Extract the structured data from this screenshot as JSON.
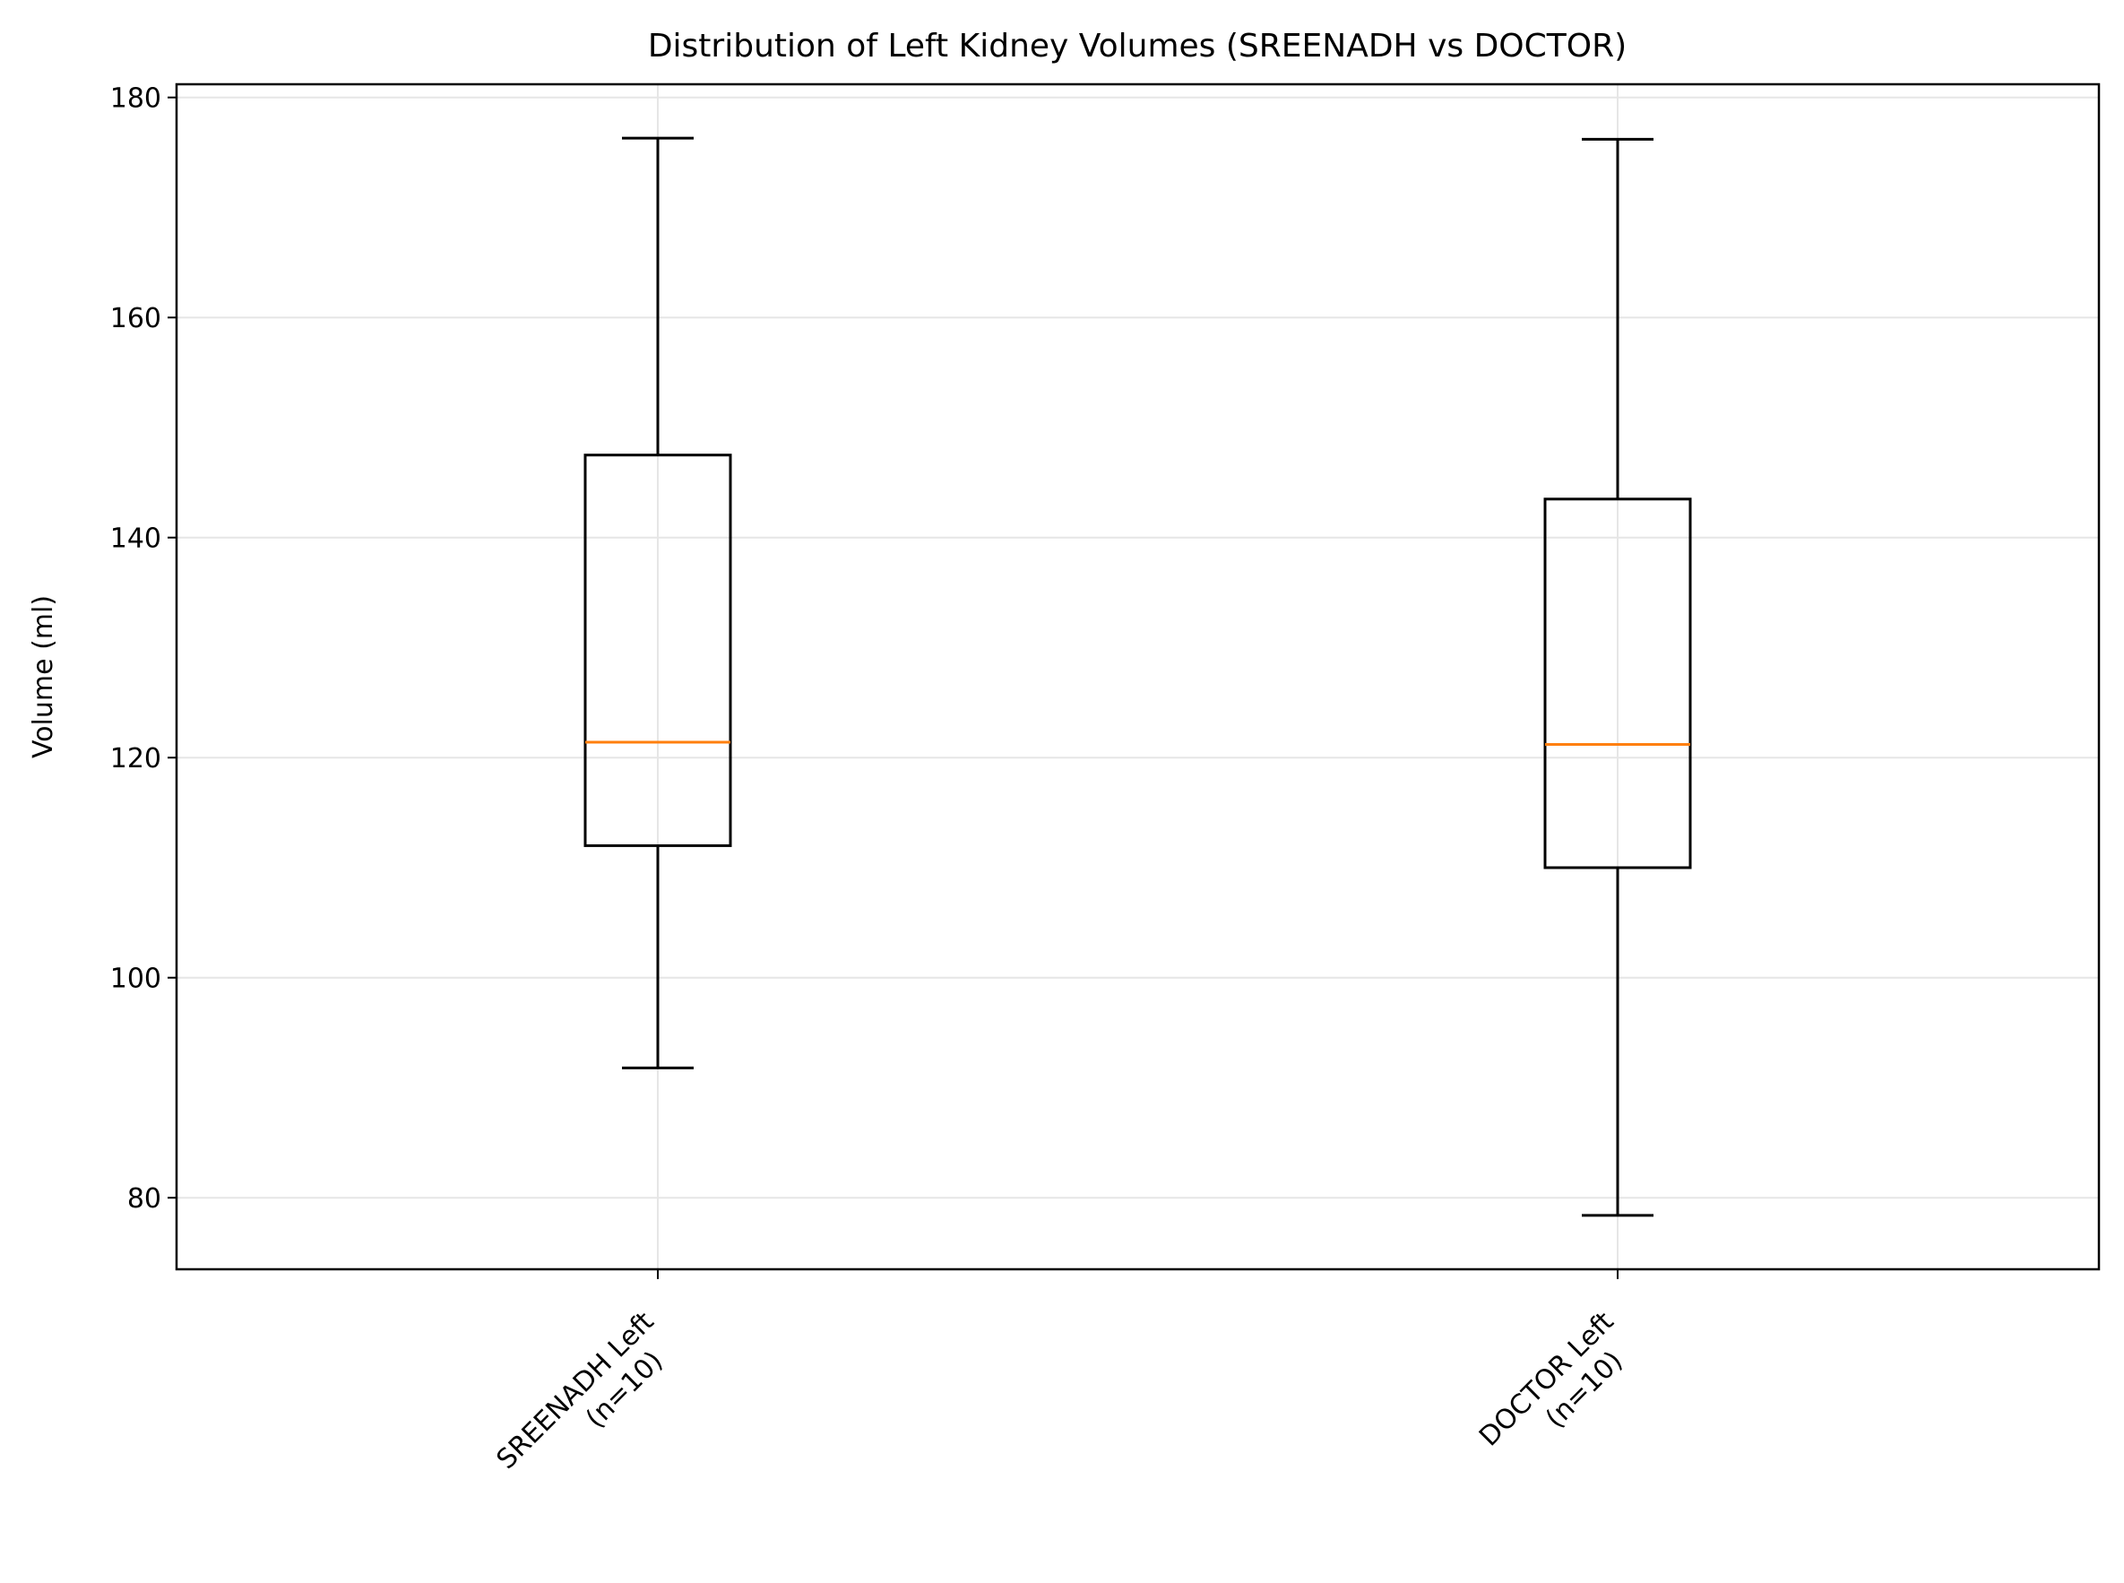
{
  "chart_data": {
    "type": "boxplot",
    "title": "Distribution of Left Kidney Volumes (SREENADH vs DOCTOR)",
    "xlabel": "",
    "ylabel": "Volume (ml)",
    "ylim": [
      73.5,
      181.2
    ],
    "yticks": [
      80,
      100,
      120,
      140,
      160,
      180
    ],
    "grid": true,
    "colors": {
      "box": "#000000",
      "median": "#ff7f0e",
      "grid": "#e6e6e6"
    },
    "categories": [
      {
        "line1": "SREENADH Left",
        "line2": "(n=10)"
      },
      {
        "line1": "DOCTOR Left",
        "line2": "(n=10)"
      }
    ],
    "boxes": [
      {
        "whisker_low": 91.8,
        "q1": 112.0,
        "median": 121.4,
        "q3": 147.5,
        "whisker_high": 176.3
      },
      {
        "whisker_low": 78.4,
        "q1": 110.0,
        "median": 121.2,
        "q3": 143.5,
        "whisker_high": 176.2
      }
    ]
  }
}
